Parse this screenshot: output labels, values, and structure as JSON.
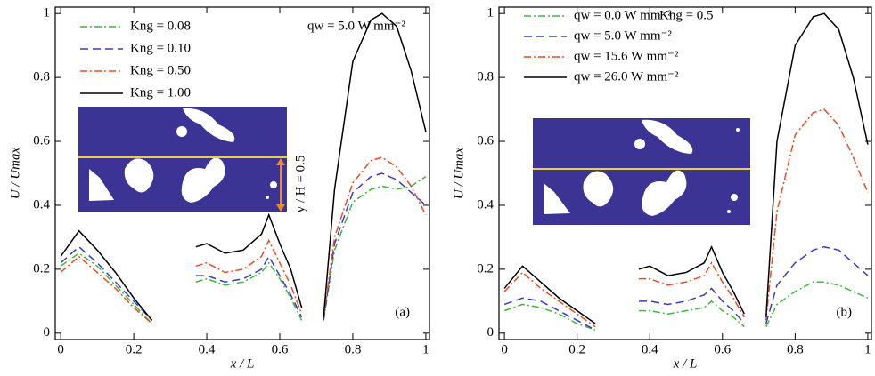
{
  "chart_data": [
    {
      "type": "line",
      "panel_label": "(a)",
      "annotation": "qw = 5.0 W mm⁻²",
      "inset_label": "y / H = 0.5",
      "x_label": "x / L",
      "y_label": "U / Umax",
      "xlim": [
        -0.015,
        1.01
      ],
      "ylim": [
        -0.02,
        1.02
      ],
      "xticks": [
        0,
        0.2,
        0.4,
        0.6,
        0.8,
        1
      ],
      "yticks": [
        0,
        0.2,
        0.4,
        0.6,
        0.8,
        1
      ],
      "x": [
        0,
        0.05,
        0.1,
        0.15,
        0.2,
        0.25,
        0.31,
        0.37,
        0.4,
        0.45,
        0.5,
        0.55,
        0.57,
        0.6,
        0.63,
        0.66,
        0.69,
        0.72,
        0.75,
        0.8,
        0.85,
        0.88,
        0.92,
        0.96,
        1
      ],
      "series": [
        {
          "name": "Kng = 0.08",
          "color": "#3cb83c",
          "dash": "dashdot",
          "values": [
            0.21,
            0.25,
            0.21,
            0.15,
            0.09,
            0.03,
            null,
            0.16,
            0.17,
            0.15,
            0.16,
            0.19,
            0.22,
            0.17,
            0.11,
            0.04,
            null,
            0.04,
            0.26,
            0.41,
            0.45,
            0.46,
            0.45,
            0.46,
            0.49
          ]
        },
        {
          "name": "Kng = 0.10",
          "color": "#3a3ac8",
          "dash": "dash",
          "values": [
            0.22,
            0.27,
            0.22,
            0.16,
            0.1,
            0.04,
            null,
            0.18,
            0.18,
            0.16,
            0.17,
            0.2,
            0.24,
            0.18,
            0.12,
            0.05,
            null,
            0.04,
            0.28,
            0.44,
            0.49,
            0.5,
            0.48,
            0.44,
            0.4
          ]
        },
        {
          "name": "Kng = 0.50",
          "color": "#f04a1e",
          "dash": "dashdot",
          "values": [
            0.19,
            0.24,
            0.19,
            0.14,
            0.08,
            0.03,
            null,
            0.21,
            0.22,
            0.19,
            0.2,
            0.24,
            0.29,
            0.22,
            0.15,
            0.06,
            null,
            0.05,
            0.3,
            0.47,
            0.54,
            0.55,
            0.52,
            0.46,
            0.37
          ]
        },
        {
          "name": "Kng = 1.00",
          "color": "#000000",
          "dash": "solid",
          "values": [
            0.24,
            0.32,
            0.26,
            0.19,
            0.11,
            0.04,
            null,
            0.27,
            0.28,
            0.25,
            0.26,
            0.31,
            0.37,
            0.28,
            0.2,
            0.08,
            null,
            0.05,
            0.45,
            0.85,
            0.98,
            1,
            0.96,
            0.82,
            0.63
          ]
        }
      ]
    },
    {
      "type": "line",
      "panel_label": "(b)",
      "annotation": "Kng = 0.5",
      "x_label": "x / L",
      "y_label": "U / Umax",
      "xlim": [
        -0.015,
        1.01
      ],
      "ylim": [
        -0.02,
        1.02
      ],
      "xticks": [
        0,
        0.2,
        0.4,
        0.6,
        0.8,
        1
      ],
      "yticks": [
        0,
        0.2,
        0.4,
        0.6,
        0.8,
        1
      ],
      "x": [
        0,
        0.05,
        0.1,
        0.15,
        0.2,
        0.25,
        0.31,
        0.37,
        0.4,
        0.45,
        0.5,
        0.55,
        0.57,
        0.6,
        0.63,
        0.66,
        0.69,
        0.72,
        0.75,
        0.8,
        0.85,
        0.88,
        0.92,
        0.96,
        1
      ],
      "series": [
        {
          "name": "qw = 0.0 W mm⁻²",
          "color": "#3cb83c",
          "dash": "dashdot",
          "values": [
            0.07,
            0.09,
            0.08,
            0.06,
            0.03,
            0.01,
            null,
            0.07,
            0.07,
            0.06,
            0.07,
            0.08,
            0.1,
            0.07,
            0.05,
            0.02,
            null,
            0.02,
            0.09,
            0.13,
            0.16,
            0.16,
            0.15,
            0.13,
            0.11
          ]
        },
        {
          "name": "qw = 5.0 W mm⁻²",
          "color": "#3a3ac8",
          "dash": "dash",
          "values": [
            0.09,
            0.11,
            0.1,
            0.07,
            0.04,
            0.01,
            null,
            0.1,
            0.1,
            0.09,
            0.1,
            0.12,
            0.14,
            0.1,
            0.07,
            0.03,
            null,
            0.03,
            0.15,
            0.22,
            0.26,
            0.27,
            0.26,
            0.22,
            0.18
          ]
        },
        {
          "name": "qw = 15.6 W mm⁻²",
          "color": "#f04a1e",
          "dash": "dashdot",
          "values": [
            0.13,
            0.19,
            0.14,
            0.1,
            0.06,
            0.02,
            null,
            0.17,
            0.17,
            0.15,
            0.16,
            0.18,
            0.22,
            0.16,
            0.11,
            0.05,
            null,
            0.04,
            0.38,
            0.62,
            0.69,
            0.7,
            0.65,
            0.55,
            0.44
          ]
        },
        {
          "name": "qw = 26.0 W mm⁻²",
          "color": "#000000",
          "dash": "solid",
          "values": [
            0.14,
            0.21,
            0.16,
            0.11,
            0.07,
            0.03,
            null,
            0.2,
            0.21,
            0.18,
            0.19,
            0.22,
            0.27,
            0.19,
            0.13,
            0.06,
            null,
            0.05,
            0.6,
            0.9,
            0.99,
            1,
            0.95,
            0.8,
            0.59
          ]
        }
      ]
    }
  ]
}
